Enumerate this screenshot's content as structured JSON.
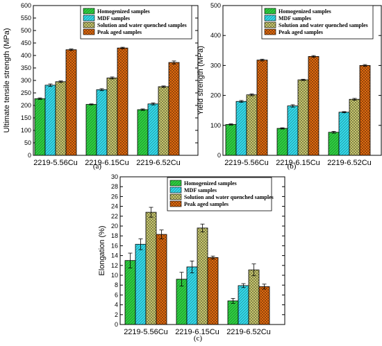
{
  "chart_data": [
    {
      "type": "bar",
      "panel_label": "(a)",
      "ylabel": "Ultimate tensile strength (MPa)",
      "xlabel": "",
      "ylim": [
        0,
        600
      ],
      "yticks": [
        0,
        50,
        100,
        150,
        200,
        250,
        300,
        350,
        400,
        450,
        500,
        550,
        600
      ],
      "categories": [
        "2219-5.56Cu",
        "2219-6.15Cu",
        "2219-6.52Cu"
      ],
      "legend_position": "top-left",
      "series": [
        {
          "name": "Homogenized samples",
          "values": [
            227,
            204,
            183
          ],
          "errors": [
            3,
            2,
            3
          ]
        },
        {
          "name": "MDF samples",
          "values": [
            281,
            263,
            206
          ],
          "errors": [
            5,
            4,
            4
          ]
        },
        {
          "name": "Solution and water quenched samples",
          "values": [
            295,
            310,
            275
          ],
          "errors": [
            3,
            4,
            3
          ]
        },
        {
          "name": "Peak aged samples",
          "values": [
            423,
            430,
            372
          ],
          "errors": [
            3,
            3,
            6
          ]
        }
      ]
    },
    {
      "type": "bar",
      "panel_label": "(b)",
      "ylabel": "Yield strength (MPa)",
      "xlabel": "",
      "ylim": [
        0,
        500
      ],
      "yticks": [
        0,
        100,
        200,
        300,
        400,
        500
      ],
      "categories": [
        "2219-5.56Cu",
        "2219-6.15Cu",
        "2219-6.52Cu"
      ],
      "legend_position": "top-right",
      "series": [
        {
          "name": "Homogenized samples",
          "values": [
            103,
            90,
            77
          ],
          "errors": [
            2,
            2,
            3
          ]
        },
        {
          "name": "MDF samples",
          "values": [
            180,
            165,
            144
          ],
          "errors": [
            3,
            4,
            2
          ]
        },
        {
          "name": "Solution and water quenched samples",
          "values": [
            202,
            252,
            187
          ],
          "errors": [
            3,
            2,
            3
          ]
        },
        {
          "name": "Peak aged samples",
          "values": [
            318,
            330,
            300
          ],
          "errors": [
            3,
            3,
            3
          ]
        }
      ]
    },
    {
      "type": "bar",
      "panel_label": "(c)",
      "ylabel": "Elongation (%)",
      "xlabel": "",
      "ylim": [
        0,
        30
      ],
      "yticks": [
        0,
        2,
        4,
        6,
        8,
        10,
        12,
        14,
        16,
        18,
        20,
        22,
        24,
        26,
        28,
        30
      ],
      "categories": [
        "2219-5.56Cu",
        "2219-6.15Cu",
        "2219-6.52Cu"
      ],
      "legend_position": "top-right",
      "series": [
        {
          "name": "Homogenized samples",
          "values": [
            13.0,
            9.2,
            4.8
          ],
          "errors": [
            1.5,
            1.4,
            0.5
          ]
        },
        {
          "name": "MDF samples",
          "values": [
            16.3,
            11.7,
            7.9
          ],
          "errors": [
            1.1,
            1.2,
            0.4
          ]
        },
        {
          "name": "Solution and water quenched samples",
          "values": [
            22.8,
            19.6,
            11.1
          ],
          "errors": [
            1.0,
            0.8,
            1.2
          ]
        },
        {
          "name": "Peak aged samples",
          "values": [
            18.3,
            13.6,
            7.7
          ],
          "errors": [
            0.9,
            0.3,
            0.5
          ]
        }
      ]
    }
  ],
  "styles": {
    "series_colors": [
      "#2ecc40",
      "#33d6e6",
      "#c8c870",
      "#e06a10"
    ],
    "series_patterns": [
      "diag-right",
      "diag-right",
      "crosshatch",
      "crosshatch"
    ],
    "error_bar_color": "#000000",
    "axis_color": "#000000"
  }
}
